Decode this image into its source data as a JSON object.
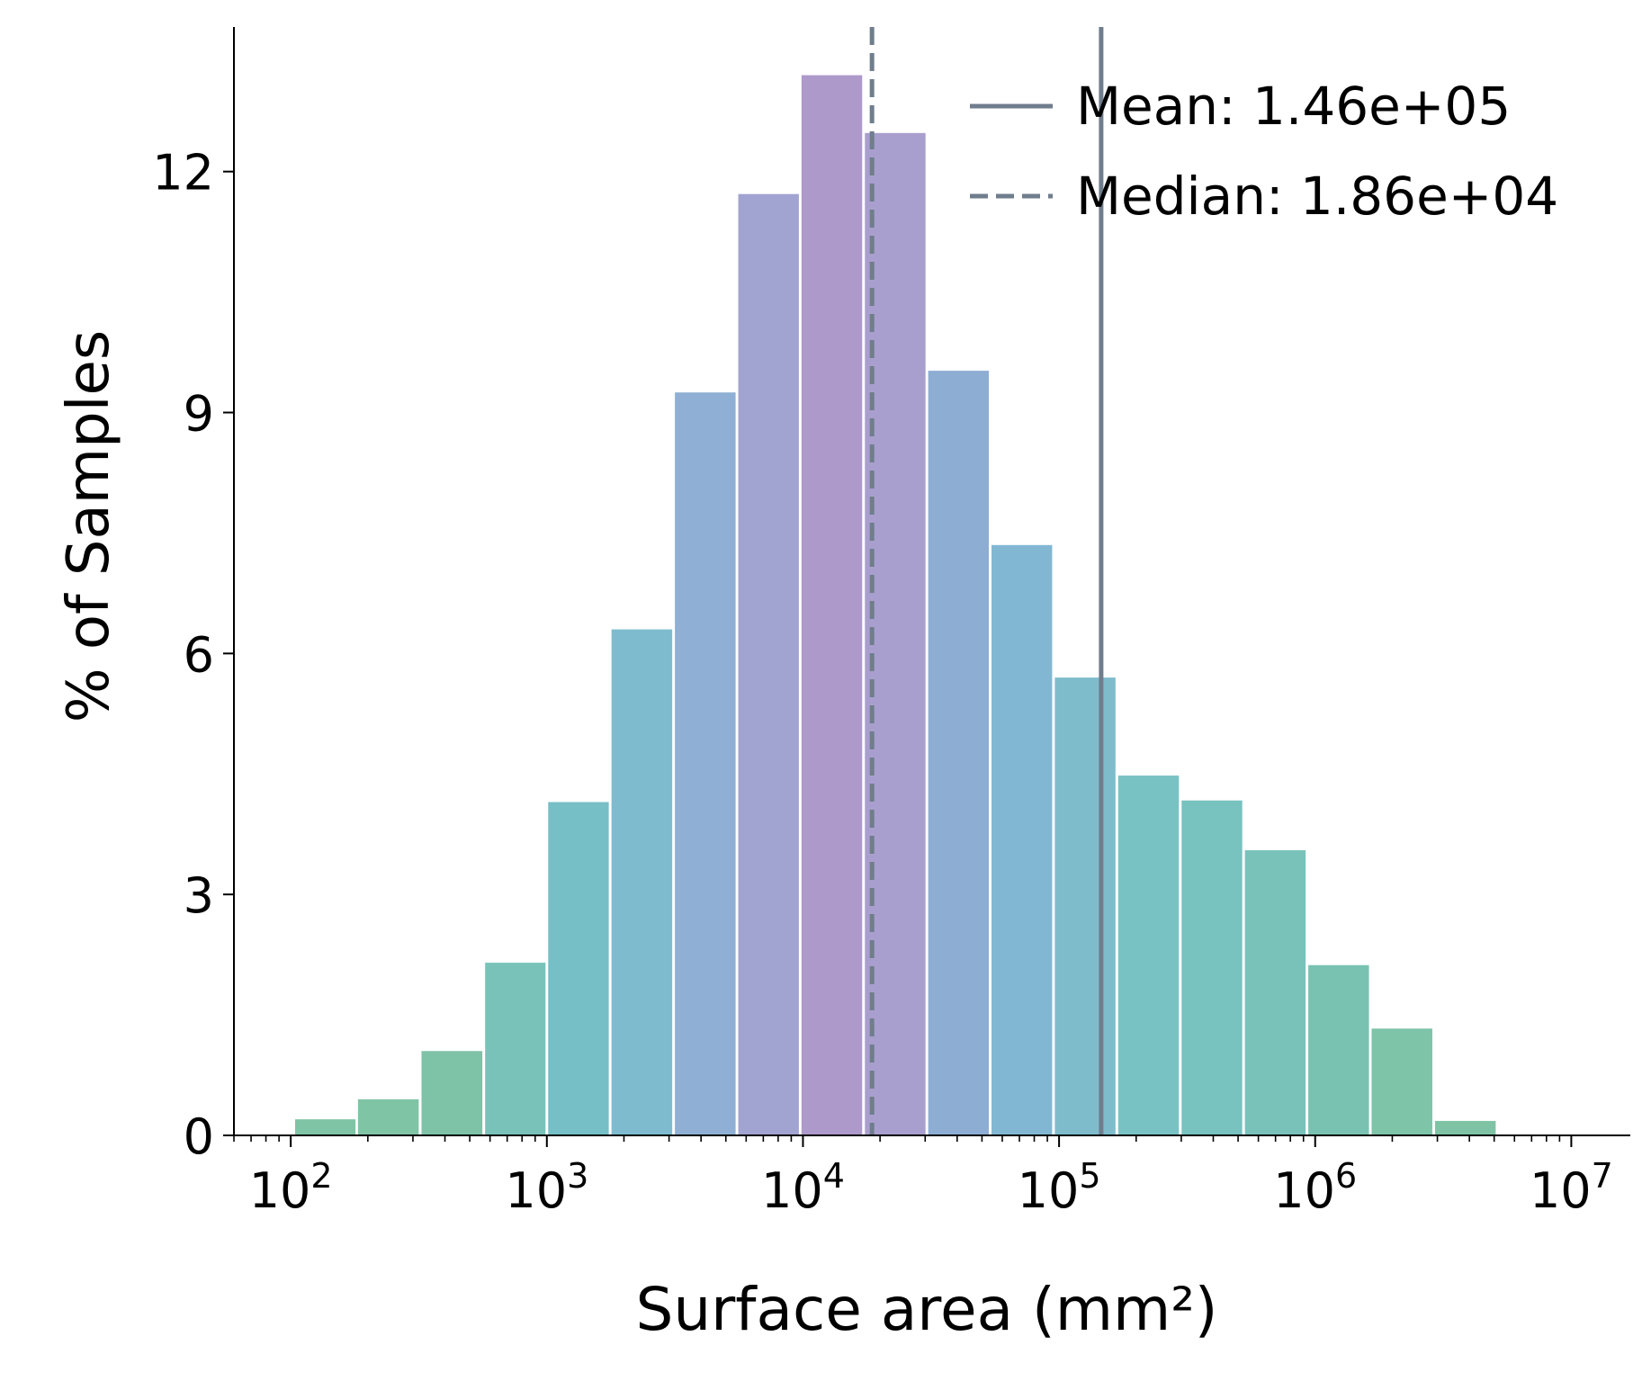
{
  "chart_data": {
    "type": "bar",
    "xlabel": "Surface area (mm²)",
    "ylabel": "% of Samples",
    "xscale": "log",
    "xlim": [
      60,
      17000000
    ],
    "ylim": [
      0,
      13.8
    ],
    "y_ticks": [
      0,
      3,
      6,
      9,
      12
    ],
    "x_ticks": [
      {
        "value": 100,
        "base": "10",
        "exp": "2"
      },
      {
        "value": 1000,
        "base": "10",
        "exp": "3"
      },
      {
        "value": 10000,
        "base": "10",
        "exp": "4"
      },
      {
        "value": 100000,
        "base": "10",
        "exp": "5"
      },
      {
        "value": 1000000,
        "base": "10",
        "exp": "6"
      },
      {
        "value": 10000000,
        "base": "10",
        "exp": "7"
      }
    ],
    "bins": [
      {
        "x0": 104,
        "x1": 179,
        "value": 0.2,
        "color": "#7fc4a4"
      },
      {
        "x0": 183,
        "x1": 316,
        "value": 0.45,
        "color": "#80c4a6"
      },
      {
        "x0": 324,
        "x1": 560,
        "value": 1.05,
        "color": "#7ec3a8"
      },
      {
        "x0": 574,
        "x1": 988,
        "value": 2.15,
        "color": "#79c2b9"
      },
      {
        "x0": 1012,
        "x1": 1745,
        "value": 4.15,
        "color": "#76bfc6"
      },
      {
        "x0": 1788,
        "x1": 3087,
        "value": 6.3,
        "color": "#7ebbcf"
      },
      {
        "x0": 3162,
        "x1": 5458,
        "value": 9.25,
        "color": "#8fb0d4"
      },
      {
        "x0": 5590,
        "x1": 9638,
        "value": 11.72,
        "color": "#a1a3d0"
      },
      {
        "x0": 9870,
        "x1": 17030,
        "value": 13.2,
        "color": "#ae99cb"
      },
      {
        "x0": 17450,
        "x1": 30100,
        "value": 12.48,
        "color": "#a99fce"
      },
      {
        "x0": 30830,
        "x1": 53170,
        "value": 9.52,
        "color": "#8eadd3"
      },
      {
        "x0": 54470,
        "x1": 93970,
        "value": 7.35,
        "color": "#82b7d3"
      },
      {
        "x0": 96260,
        "x1": 166100,
        "value": 5.7,
        "color": "#7ebccc"
      },
      {
        "x0": 170100,
        "x1": 293700,
        "value": 4.48,
        "color": "#79c2c4"
      },
      {
        "x0": 300900,
        "x1": 519000,
        "value": 4.17,
        "color": "#78c2bf"
      },
      {
        "x0": 531700,
        "x1": 917500,
        "value": 3.55,
        "color": "#78c2ba"
      },
      {
        "x0": 939900,
        "x1": 1622000,
        "value": 2.12,
        "color": "#79c2b2"
      },
      {
        "x0": 1661000,
        "x1": 2867000,
        "value": 1.33,
        "color": "#7dc4a8"
      },
      {
        "x0": 2937000,
        "x1": 5068000,
        "value": 0.18,
        "color": "#7ec4a4"
      }
    ],
    "lines": [
      {
        "label": "Mean: 1.46e+05",
        "value": 146000,
        "style": "solid",
        "color": "#6f7d8c"
      },
      {
        "label": "Median: 1.86e+04",
        "value": 18600,
        "style": "dashed",
        "color": "#6f7d8c"
      }
    ],
    "legend_position": "top-right",
    "grid": false
  }
}
